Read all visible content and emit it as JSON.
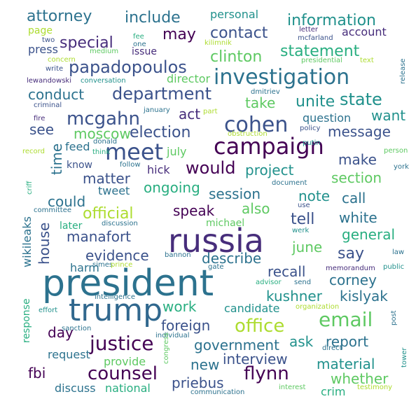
{
  "palette": [
    "#440154",
    "#472d7b",
    "#3b528b",
    "#2c728e",
    "#21918c",
    "#28ae80",
    "#5ec962",
    "#addc30",
    "#fde725"
  ],
  "words": [
    {
      "t": "president",
      "c": "#2c728e"
    },
    {
      "t": "russia",
      "c": "#472d7b"
    },
    {
      "t": "trump",
      "c": "#31688e"
    },
    {
      "t": "campaign",
      "c": "#440154"
    },
    {
      "t": "investigation",
      "c": "#2c728e"
    },
    {
      "t": "meet",
      "c": "#3b528b"
    },
    {
      "t": "cohen",
      "c": "#3b528b"
    },
    {
      "t": "justice",
      "c": "#440154"
    },
    {
      "t": "email",
      "c": "#5ec962"
    },
    {
      "t": "office",
      "c": "#addc30"
    },
    {
      "t": "counsel",
      "c": "#440154"
    },
    {
      "t": "flynn",
      "c": "#440154"
    },
    {
      "t": "department",
      "c": "#3b528b"
    },
    {
      "t": "papadopoulos",
      "c": "#3b528b"
    },
    {
      "t": "state",
      "c": "#21918c"
    },
    {
      "t": "mcgahn",
      "c": "#3b528b"
    },
    {
      "t": "election",
      "c": "#3b528b"
    },
    {
      "t": "would",
      "c": "#440154"
    },
    {
      "t": "contact",
      "c": "#3b528b"
    },
    {
      "t": "information",
      "c": "#21918c"
    },
    {
      "t": "attorney",
      "c": "#2c728e"
    },
    {
      "t": "include",
      "c": "#2c728e"
    },
    {
      "t": "special",
      "c": "#472d7b"
    },
    {
      "t": "may",
      "c": "#440154"
    },
    {
      "t": "clinton",
      "c": "#5ec962"
    },
    {
      "t": "statement",
      "c": "#28ae80"
    },
    {
      "t": "unite",
      "c": "#21918c"
    },
    {
      "t": "take",
      "c": "#5ec962"
    },
    {
      "t": "conduct",
      "c": "#2c728e"
    },
    {
      "t": "act",
      "c": "#472d7b"
    },
    {
      "t": "see",
      "c": "#3b528b"
    },
    {
      "t": "moscow",
      "c": "#5ec962"
    },
    {
      "t": "message",
      "c": "#3b528b"
    },
    {
      "t": "want",
      "c": "#21918c"
    },
    {
      "t": "time",
      "c": "#2c728e"
    },
    {
      "t": "matter",
      "c": "#3b528b"
    },
    {
      "t": "project",
      "c": "#21918c"
    },
    {
      "t": "make",
      "c": "#3b528b"
    },
    {
      "t": "section",
      "c": "#5ec962"
    },
    {
      "t": "could",
      "c": "#2c728e"
    },
    {
      "t": "ongoing",
      "c": "#28ae80"
    },
    {
      "t": "session",
      "c": "#2c728e"
    },
    {
      "t": "note",
      "c": "#21918c"
    },
    {
      "t": "call",
      "c": "#2c728e"
    },
    {
      "t": "official",
      "c": "#addc30"
    },
    {
      "t": "speak",
      "c": "#440154"
    },
    {
      "t": "also",
      "c": "#5ec962"
    },
    {
      "t": "tell",
      "c": "#3b528b"
    },
    {
      "t": "white",
      "c": "#2c728e"
    },
    {
      "t": "manafort",
      "c": "#3b528b"
    },
    {
      "t": "general",
      "c": "#28ae80"
    },
    {
      "t": "house",
      "c": "#3b528b"
    },
    {
      "t": "evidence",
      "c": "#3b528b"
    },
    {
      "t": "june",
      "c": "#5ec962"
    },
    {
      "t": "say",
      "c": "#3b528b"
    },
    {
      "t": "describe",
      "c": "#2c728e"
    },
    {
      "t": "recall",
      "c": "#3b528b"
    },
    {
      "t": "corney",
      "c": "#2c728e"
    },
    {
      "t": "kushner",
      "c": "#21918c"
    },
    {
      "t": "kislyak",
      "c": "#2c728e"
    },
    {
      "t": "work",
      "c": "#28ae80"
    },
    {
      "t": "candidate",
      "c": "#21918c"
    },
    {
      "t": "foreign",
      "c": "#3b528b"
    },
    {
      "t": "government",
      "c": "#2c728e"
    },
    {
      "t": "ask",
      "c": "#21918c"
    },
    {
      "t": "report",
      "c": "#2c728e"
    },
    {
      "t": "day",
      "c": "#440154"
    },
    {
      "t": "interview",
      "c": "#3b528b"
    },
    {
      "t": "material",
      "c": "#21918c"
    },
    {
      "t": "new",
      "c": "#2c728e"
    },
    {
      "t": "whether",
      "c": "#5ec962"
    },
    {
      "t": "fbi",
      "c": "#440154"
    },
    {
      "t": "priebus",
      "c": "#3b528b"
    },
    {
      "t": "discuss",
      "c": "#2c728e"
    },
    {
      "t": "national",
      "c": "#28ae80"
    },
    {
      "t": "crim",
      "c": "#28ae80"
    },
    {
      "t": "provide",
      "c": "#5ec962"
    },
    {
      "t": "request",
      "c": "#2c728e"
    },
    {
      "t": "wikileaks",
      "c": "#2c728e"
    },
    {
      "t": "response",
      "c": "#28ae80"
    },
    {
      "t": "harm",
      "c": "#2c728e"
    },
    {
      "t": "personal",
      "c": "#21918c"
    },
    {
      "t": "account",
      "c": "#472d7b"
    },
    {
      "t": "press",
      "c": "#3b528b"
    },
    {
      "t": "page",
      "c": "#addc30"
    },
    {
      "t": "issue",
      "c": "#472d7b"
    },
    {
      "t": "director",
      "c": "#5ec962"
    },
    {
      "t": "question",
      "c": "#2c728e"
    },
    {
      "t": "feed",
      "c": "#2c728e"
    },
    {
      "t": "know",
      "c": "#3b528b"
    },
    {
      "t": "hick",
      "c": "#472d7b"
    },
    {
      "t": "tweet",
      "c": "#2c728e"
    },
    {
      "t": "july",
      "c": "#5ec962"
    },
    {
      "t": "later",
      "c": "#28ae80"
    },
    {
      "t": "michael",
      "c": "#5ec962"
    },
    {
      "t": "two",
      "c": "#3b528b"
    },
    {
      "t": "fee",
      "c": "#28ae80"
    },
    {
      "t": "one",
      "c": "#2c728e"
    },
    {
      "t": "medium",
      "c": "#5ec962"
    },
    {
      "t": "concern",
      "c": "#addc30"
    },
    {
      "t": "write",
      "c": "#3b528b"
    },
    {
      "t": "lewandowski",
      "c": "#472d7b"
    },
    {
      "t": "conversation",
      "c": "#21918c"
    },
    {
      "t": "criminal",
      "c": "#3b528b"
    },
    {
      "t": "fire",
      "c": "#472d7b"
    },
    {
      "t": "record",
      "c": "#addc30"
    },
    {
      "t": "criff",
      "c": "#28ae80"
    },
    {
      "t": "committee",
      "c": "#2c728e"
    },
    {
      "t": "letter",
      "c": "#472d7b"
    },
    {
      "t": "kilimnik",
      "c": "#addc30"
    },
    {
      "t": "mcfarland",
      "c": "#3b528b"
    },
    {
      "t": "presidential",
      "c": "#5ec962"
    },
    {
      "t": "text",
      "c": "#addc30"
    },
    {
      "t": "release",
      "c": "#2c728e"
    },
    {
      "t": "dmitriev",
      "c": "#2c728e"
    },
    {
      "t": "part",
      "c": "#addc30"
    },
    {
      "t": "january",
      "c": "#2c728e"
    },
    {
      "t": "obstruction",
      "c": "#addc30"
    },
    {
      "t": "policy",
      "c": "#3b528b"
    },
    {
      "t": "putin",
      "c": "#21918c"
    },
    {
      "t": "person",
      "c": "#5ec962"
    },
    {
      "t": "donald",
      "c": "#2c728e"
    },
    {
      "t": "think",
      "c": "#28ae80"
    },
    {
      "t": "follow",
      "c": "#2c728e"
    },
    {
      "t": "york",
      "c": "#2c728e"
    },
    {
      "t": "document",
      "c": "#2c728e"
    },
    {
      "t": "use",
      "c": "#3b528b"
    },
    {
      "t": "discussion",
      "c": "#2c728e"
    },
    {
      "t": "werk",
      "c": "#21918c"
    },
    {
      "t": "bannon",
      "c": "#2c728e"
    },
    {
      "t": "law",
      "c": "#2c728e"
    },
    {
      "t": "simes",
      "c": "#2c728e"
    },
    {
      "t": "prince",
      "c": "#addc30"
    },
    {
      "t": "gate",
      "c": "#2c728e"
    },
    {
      "t": "memorandum",
      "c": "#472d7b"
    },
    {
      "t": "public",
      "c": "#21918c"
    },
    {
      "t": "advisor",
      "c": "#28ae80"
    },
    {
      "t": "send",
      "c": "#2c728e"
    },
    {
      "t": "intelligence",
      "c": "#2c728e"
    },
    {
      "t": "effort",
      "c": "#21918c"
    },
    {
      "t": "organization",
      "c": "#addc30"
    },
    {
      "t": "individual",
      "c": "#2c728e"
    },
    {
      "t": "sanction",
      "c": "#2c728e"
    },
    {
      "t": "post",
      "c": "#2c728e"
    },
    {
      "t": "direct",
      "c": "#2c728e"
    },
    {
      "t": "congress",
      "c": "#5ec962"
    },
    {
      "t": "tower",
      "c": "#21918c"
    },
    {
      "t": "interest",
      "c": "#5ec962"
    },
    {
      "t": "testimony",
      "c": "#addc30"
    },
    {
      "t": "communication",
      "c": "#2c728e"
    }
  ]
}
